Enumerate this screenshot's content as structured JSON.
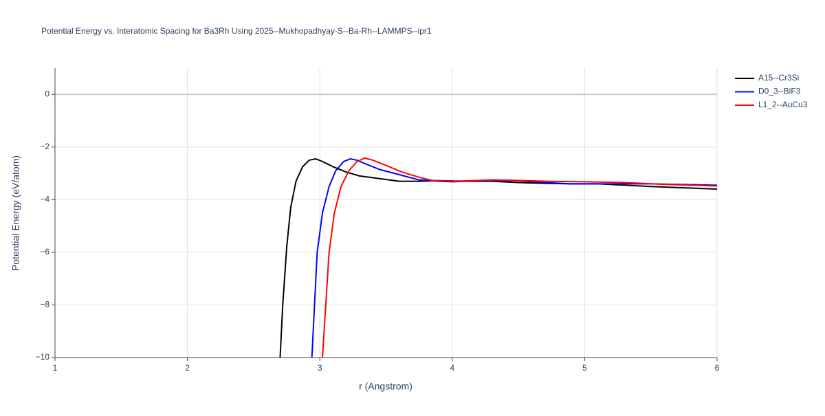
{
  "chart_data": {
    "type": "line",
    "title": "Potential Energy vs. Interatomic Spacing for Ba3Rh Using 2025--Mukhopadhyay-S--Ba-Rh--LAMMPS--ipr1",
    "xlabel": "r (Angstrom)",
    "ylabel": "Potential Energy (eV/atom)",
    "xlim": [
      1,
      6
    ],
    "ylim": [
      -10,
      1
    ],
    "xticks": [
      1,
      2,
      3,
      4,
      5,
      6
    ],
    "yticks": [
      {
        "value": -10,
        "label": "−10"
      },
      {
        "value": -8,
        "label": "−8"
      },
      {
        "value": -6,
        "label": "−6"
      },
      {
        "value": -4,
        "label": "−4"
      },
      {
        "value": -2,
        "label": "−2"
      },
      0
    ],
    "grid": true,
    "legend": "right",
    "series": [
      {
        "name": "A15--Cr3Si",
        "color": "#000000",
        "x": [
          2.7,
          2.72,
          2.75,
          2.78,
          2.82,
          2.87,
          2.92,
          2.97,
          3.02,
          3.1,
          3.2,
          3.3,
          3.45,
          3.6,
          3.75,
          3.9,
          4.1,
          4.3,
          4.5,
          4.7,
          4.9,
          5.1,
          5.3,
          5.5,
          5.75,
          6.0
        ],
        "values": [
          -10,
          -8.0,
          -5.8,
          -4.3,
          -3.3,
          -2.75,
          -2.5,
          -2.45,
          -2.55,
          -2.75,
          -2.95,
          -3.1,
          -3.2,
          -3.3,
          -3.3,
          -3.28,
          -3.3,
          -3.3,
          -3.35,
          -3.38,
          -3.4,
          -3.4,
          -3.45,
          -3.5,
          -3.55,
          -3.6
        ]
      },
      {
        "name": "D0_3--BiF3",
        "color": "#0000ff",
        "x": [
          2.94,
          2.98,
          3.02,
          3.07,
          3.12,
          3.18,
          3.23,
          3.28,
          3.35,
          3.45,
          3.6,
          3.75,
          3.9,
          4.0,
          4.2,
          4.5,
          4.7,
          4.9,
          5.1,
          5.5,
          6.0
        ],
        "values": [
          -10,
          -6,
          -4.5,
          -3.5,
          -2.9,
          -2.55,
          -2.45,
          -2.5,
          -2.65,
          -2.85,
          -3.05,
          -3.25,
          -3.3,
          -3.32,
          -3.28,
          -3.28,
          -3.35,
          -3.4,
          -3.4,
          -3.4,
          -3.45
        ]
      },
      {
        "name": "L1_2--AuCu3",
        "color": "#ff0000",
        "x": [
          3.02,
          3.07,
          3.11,
          3.16,
          3.22,
          3.28,
          3.34,
          3.4,
          3.5,
          3.62,
          3.75,
          3.85,
          4.0,
          4.15,
          4.3,
          4.5,
          4.7,
          5.0,
          5.3,
          5.6,
          5.8,
          6.0
        ],
        "values": [
          -10,
          -6,
          -4.5,
          -3.5,
          -2.9,
          -2.55,
          -2.42,
          -2.5,
          -2.7,
          -2.95,
          -3.15,
          -3.27,
          -3.3,
          -3.28,
          -3.25,
          -3.27,
          -3.3,
          -3.32,
          -3.35,
          -3.42,
          -3.45,
          -3.48
        ]
      }
    ]
  }
}
